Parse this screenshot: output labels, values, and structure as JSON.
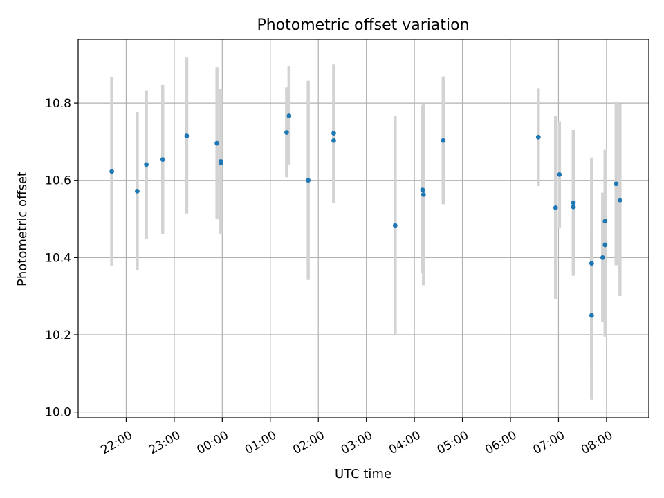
{
  "chart_data": {
    "type": "scatter",
    "title": "Photometric offset variation",
    "xlabel": "UTC time",
    "ylabel": "Photometric offset",
    "x_unit": "UTC time (hours, 21:00 = 21, 08:00 = 32)",
    "xlim": [
      21.0,
      32.88
    ],
    "ylim": [
      9.985,
      10.965
    ],
    "x_ticks": [
      {
        "value": 22,
        "label": "22:00"
      },
      {
        "value": 23,
        "label": "23:00"
      },
      {
        "value": 24,
        "label": "00:00"
      },
      {
        "value": 25,
        "label": "01:00"
      },
      {
        "value": 26,
        "label": "02:00"
      },
      {
        "value": 27,
        "label": "03:00"
      },
      {
        "value": 28,
        "label": "04:00"
      },
      {
        "value": 29,
        "label": "05:00"
      },
      {
        "value": 30,
        "label": "06:00"
      },
      {
        "value": 31,
        "label": "07:00"
      },
      {
        "value": 32,
        "label": "08:00"
      }
    ],
    "y_ticks": [
      {
        "value": 10.0,
        "label": "10.0"
      },
      {
        "value": 10.2,
        "label": "10.2"
      },
      {
        "value": 10.4,
        "label": "10.4"
      },
      {
        "value": 10.6,
        "label": "10.6"
      },
      {
        "value": 10.8,
        "label": "10.8"
      }
    ],
    "grid": true,
    "colors": {
      "point": "#1f77b4",
      "errorbar": "#d3d3d3"
    },
    "points": [
      {
        "x": 21.7,
        "y": 10.623,
        "low": 10.378,
        "high": 10.868
      },
      {
        "x": 22.23,
        "y": 10.572,
        "low": 10.368,
        "high": 10.777
      },
      {
        "x": 22.42,
        "y": 10.641,
        "low": 10.448,
        "high": 10.833
      },
      {
        "x": 22.76,
        "y": 10.654,
        "low": 10.461,
        "high": 10.847
      },
      {
        "x": 23.26,
        "y": 10.715,
        "low": 10.514,
        "high": 10.918
      },
      {
        "x": 23.89,
        "y": 10.696,
        "low": 10.499,
        "high": 10.893
      },
      {
        "x": 23.97,
        "y": 10.649,
        "low": 10.462,
        "high": 10.836
      },
      {
        "x": 23.97,
        "y": 10.645,
        "low": 10.462,
        "high": 10.836
      },
      {
        "x": 25.34,
        "y": 10.724,
        "low": 10.608,
        "high": 10.841
      },
      {
        "x": 25.39,
        "y": 10.767,
        "low": 10.641,
        "high": 10.895
      },
      {
        "x": 25.79,
        "y": 10.6,
        "low": 10.342,
        "high": 10.858
      },
      {
        "x": 26.32,
        "y": 10.722,
        "low": 10.541,
        "high": 10.9
      },
      {
        "x": 26.32,
        "y": 10.703,
        "low": 10.541,
        "high": 10.868
      },
      {
        "x": 27.6,
        "y": 10.483,
        "low": 10.2,
        "high": 10.767
      },
      {
        "x": 28.17,
        "y": 10.575,
        "low": 10.359,
        "high": 10.794
      },
      {
        "x": 28.19,
        "y": 10.563,
        "low": 10.328,
        "high": 10.798
      },
      {
        "x": 28.6,
        "y": 10.703,
        "low": 10.538,
        "high": 10.869
      },
      {
        "x": 30.58,
        "y": 10.712,
        "low": 10.585,
        "high": 10.839
      },
      {
        "x": 30.94,
        "y": 10.529,
        "low": 10.292,
        "high": 10.768
      },
      {
        "x": 31.02,
        "y": 10.615,
        "low": 10.478,
        "high": 10.753
      },
      {
        "x": 31.31,
        "y": 10.542,
        "low": 10.353,
        "high": 10.73
      },
      {
        "x": 31.31,
        "y": 10.531,
        "low": 10.353,
        "high": 10.73
      },
      {
        "x": 31.69,
        "y": 10.385,
        "low": 10.116,
        "high": 10.659
      },
      {
        "x": 31.69,
        "y": 10.25,
        "low": 10.032,
        "high": 10.47
      },
      {
        "x": 31.92,
        "y": 10.4,
        "low": 10.232,
        "high": 10.568
      },
      {
        "x": 31.97,
        "y": 10.494,
        "low": 10.309,
        "high": 10.679
      },
      {
        "x": 31.97,
        "y": 10.433,
        "low": 10.195,
        "high": 10.671
      },
      {
        "x": 32.2,
        "y": 10.591,
        "low": 10.38,
        "high": 10.804
      },
      {
        "x": 32.28,
        "y": 10.549,
        "low": 10.3,
        "high": 10.798
      }
    ]
  }
}
